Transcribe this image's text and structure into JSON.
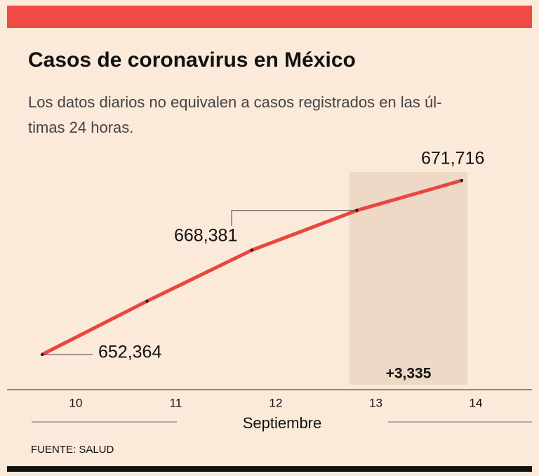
{
  "chart_data": {
    "type": "line",
    "title": "Casos de coronavirus en México",
    "subtitle": [
      "Los datos diarios no equivalen a casos registrados en las úl-",
      "timas 24 horas."
    ],
    "categories": [
      "10",
      "11",
      "12",
      "13",
      "14"
    ],
    "x_label": "Septiembre",
    "series": [
      {
        "name": "Casos",
        "color": "#e8473f",
        "values": [
          652364,
          658299,
          663973,
          668381,
          671716
        ],
        "value_labels": [
          "652,364",
          null,
          null,
          "668,381",
          "671,716"
        ]
      }
    ],
    "annotation": "+3,335",
    "source": "FUENTE: SALUD"
  }
}
